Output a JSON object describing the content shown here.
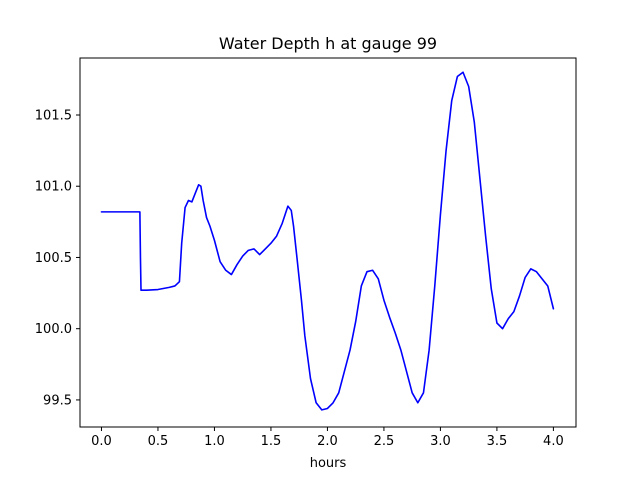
{
  "chart_data": {
    "type": "line",
    "title": "Water Depth h at gauge 99",
    "xlabel": "hours",
    "ylabel": "",
    "xlim": [
      -0.19,
      4.2
    ],
    "ylim": [
      99.31,
      101.9
    ],
    "xticks": [
      0.0,
      0.5,
      1.0,
      1.5,
      2.0,
      2.5,
      3.0,
      3.5,
      4.0
    ],
    "xtick_labels": [
      "0.0",
      "0.5",
      "1.0",
      "1.5",
      "2.0",
      "2.5",
      "3.0",
      "3.5",
      "4.0"
    ],
    "yticks": [
      99.5,
      100.0,
      100.5,
      101.0,
      101.5
    ],
    "ytick_labels": [
      "99.5",
      "100.0",
      "100.5",
      "101.0",
      "101.5"
    ],
    "grid": false,
    "series": [
      {
        "color": "#0000ff",
        "x": [
          0.0,
          0.1,
          0.2,
          0.3,
          0.34,
          0.345,
          0.35,
          0.4,
          0.5,
          0.6,
          0.65,
          0.69,
          0.71,
          0.74,
          0.77,
          0.8,
          0.83,
          0.86,
          0.88,
          0.9,
          0.93,
          0.96,
          1.0,
          1.05,
          1.1,
          1.15,
          1.2,
          1.25,
          1.3,
          1.35,
          1.4,
          1.45,
          1.5,
          1.55,
          1.6,
          1.65,
          1.68,
          1.7,
          1.73,
          1.77,
          1.8,
          1.85,
          1.9,
          1.95,
          2.0,
          2.05,
          2.1,
          2.15,
          2.2,
          2.25,
          2.3,
          2.35,
          2.4,
          2.45,
          2.5,
          2.55,
          2.6,
          2.65,
          2.7,
          2.75,
          2.8,
          2.85,
          2.9,
          2.95,
          3.0,
          3.05,
          3.1,
          3.15,
          3.2,
          3.25,
          3.3,
          3.35,
          3.4,
          3.45,
          3.5,
          3.55,
          3.6,
          3.65,
          3.7,
          3.75,
          3.8,
          3.85,
          3.9,
          3.95,
          4.0
        ],
        "values": [
          100.82,
          100.82,
          100.82,
          100.82,
          100.82,
          100.5,
          100.27,
          100.27,
          100.275,
          100.29,
          100.3,
          100.33,
          100.6,
          100.85,
          100.9,
          100.89,
          100.95,
          101.01,
          101.0,
          100.9,
          100.78,
          100.72,
          100.62,
          100.47,
          100.41,
          100.38,
          100.45,
          100.51,
          100.55,
          100.56,
          100.52,
          100.56,
          100.6,
          100.65,
          100.74,
          100.86,
          100.83,
          100.72,
          100.5,
          100.2,
          99.95,
          99.65,
          99.48,
          99.43,
          99.44,
          99.48,
          99.55,
          99.7,
          99.85,
          100.05,
          100.3,
          100.4,
          100.41,
          100.35,
          100.2,
          100.08,
          99.97,
          99.85,
          99.7,
          99.55,
          99.48,
          99.55,
          99.85,
          100.3,
          100.8,
          101.25,
          101.6,
          101.77,
          101.8,
          101.7,
          101.45,
          101.05,
          100.65,
          100.28,
          100.04,
          100.0,
          100.07,
          100.12,
          100.23,
          100.36,
          100.42,
          100.4,
          100.35,
          100.3,
          100.14
        ]
      }
    ]
  }
}
